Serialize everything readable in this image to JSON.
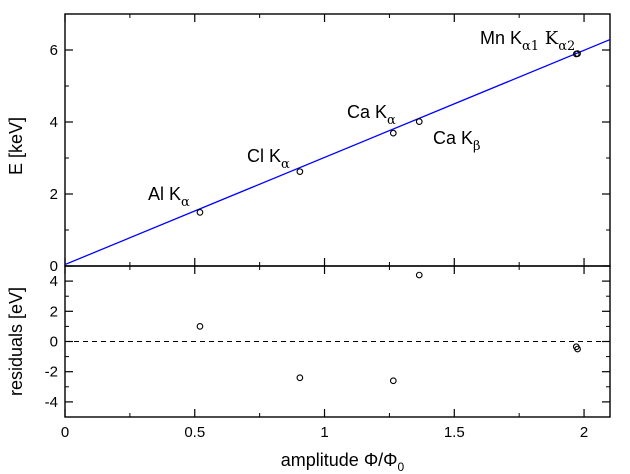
{
  "chart_data": [
    {
      "type": "line",
      "panel": "top",
      "ylabel": "E [keV]",
      "xlim": [
        0,
        2.1
      ],
      "ylim": [
        0,
        7
      ],
      "x_ticks": [
        "0",
        "0.5",
        "1",
        "1.5",
        "2"
      ],
      "y_ticks": [
        "0",
        "2",
        "4",
        "6"
      ],
      "fit_line": {
        "x": [
          0,
          2.1
        ],
        "y": [
          0.04,
          6.29
        ],
        "color": "#0000ff"
      },
      "series": [
        {
          "points": [
            {
              "x": 0.52,
              "y": 1.49
            },
            {
              "x": 0.905,
              "y": 2.62
            },
            {
              "x": 1.265,
              "y": 3.69
            },
            {
              "x": 1.365,
              "y": 4.01
            },
            {
              "x": 1.97,
              "y": 5.89
            },
            {
              "x": 1.975,
              "y": 5.9
            }
          ]
        }
      ],
      "annotations": [
        {
          "text": "Al K",
          "sub": "α",
          "sub2": ""
        },
        {
          "text": "Cl K",
          "sub": "α",
          "sub2": ""
        },
        {
          "text": "Ca K",
          "sub": "α",
          "sub2": ""
        },
        {
          "text": "Ca K",
          "sub": "β",
          "sub2": ""
        },
        {
          "text": "Mn K",
          "sub": "α1",
          "mid": " K",
          "sub2": "α2"
        }
      ]
    },
    {
      "type": "scatter",
      "panel": "bottom",
      "ylabel": "residuals [eV]",
      "xlabel": "amplitude Φ/Φ",
      "xlabel_sub": "0",
      "xlim": [
        0,
        2.1
      ],
      "ylim": [
        -5,
        5
      ],
      "x_ticks": [
        "0",
        "0.5",
        "1",
        "1.5",
        "2"
      ],
      "y_ticks": [
        "-4",
        "-2",
        "0",
        "2",
        "4"
      ],
      "zero_line": {
        "y": 0,
        "style": "dashed"
      },
      "series": [
        {
          "points": [
            {
              "x": 0.52,
              "y": 1.0
            },
            {
              "x": 0.905,
              "y": -2.4
            },
            {
              "x": 1.265,
              "y": -2.6
            },
            {
              "x": 1.365,
              "y": 4.4
            },
            {
              "x": 1.97,
              "y": -0.35
            },
            {
              "x": 1.975,
              "y": -0.5
            }
          ]
        }
      ]
    }
  ]
}
